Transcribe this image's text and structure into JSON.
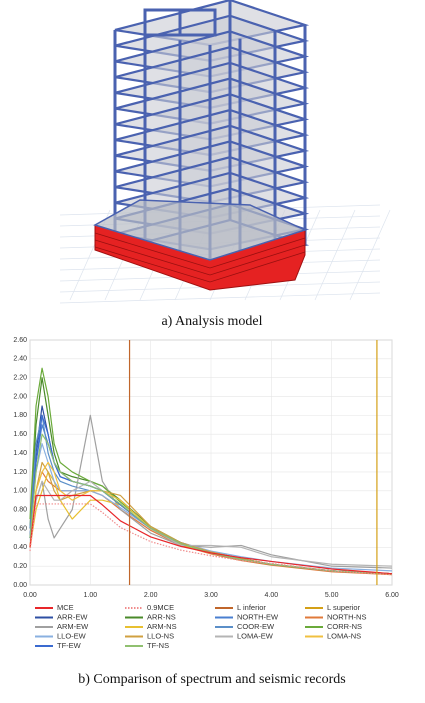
{
  "figure_a_caption": "a)   Analysis model",
  "chart_data": {
    "type": "line",
    "caption": "b) Comparison of spectrum and seismic records",
    "x": [
      0,
      0.1,
      0.2,
      0.3,
      0.4,
      0.5,
      0.7,
      1.0,
      1.2,
      1.5,
      2.0,
      2.5,
      3.0,
      3.5,
      4.0,
      5.0,
      6.0
    ],
    "xlim": [
      0,
      6
    ],
    "ylim": [
      0,
      2.6
    ],
    "grid": true,
    "xticks": [
      {
        "value": 0,
        "label": "0.00"
      },
      {
        "value": 1,
        "label": "1.00"
      },
      {
        "value": 2,
        "label": "2.00"
      },
      {
        "value": 3,
        "label": "3.00"
      },
      {
        "value": 4,
        "label": "4.00"
      },
      {
        "value": 5,
        "label": "5.00"
      },
      {
        "value": 6,
        "label": "6.00"
      }
    ],
    "yticks": [
      {
        "value": 0,
        "label": "0.00"
      },
      {
        "value": 0.2,
        "label": "0.20"
      },
      {
        "value": 0.4,
        "label": "0.40"
      },
      {
        "value": 0.6,
        "label": "0.60"
      },
      {
        "value": 0.8,
        "label": "0.80"
      },
      {
        "value": 1.0,
        "label": "1.00"
      },
      {
        "value": 1.2,
        "label": "1.20"
      },
      {
        "value": 1.4,
        "label": "1.40"
      },
      {
        "value": 1.6,
        "label": "1.60"
      },
      {
        "value": 1.8,
        "label": "1.80"
      },
      {
        "value": 2.0,
        "label": "2.00"
      },
      {
        "value": 2.2,
        "label": "2.20"
      },
      {
        "value": 2.4,
        "label": "2.40"
      },
      {
        "value": 2.6,
        "label": "2.60"
      }
    ],
    "series": [
      {
        "name": "MCE",
        "color": "#e8262a",
        "values": [
          0.4,
          0.95,
          0.95,
          0.95,
          0.95,
          0.95,
          0.95,
          0.95,
          0.85,
          0.68,
          0.51,
          0.41,
          0.34,
          0.29,
          0.25,
          0.17,
          0.12
        ]
      },
      {
        "name": "0.9MCE",
        "color": "#f08c8c",
        "dashed": true,
        "values": [
          0.36,
          0.86,
          0.86,
          0.86,
          0.86,
          0.86,
          0.86,
          0.86,
          0.77,
          0.61,
          0.46,
          0.37,
          0.31,
          0.26,
          0.23,
          0.15,
          0.11
        ]
      },
      {
        "name": "L inferior",
        "color": "#c0662b",
        "x": [
          1.65,
          1.65
        ],
        "values": [
          0,
          2.6
        ]
      },
      {
        "name": "L superior",
        "color": "#d4a017",
        "x": [
          5.75,
          5.75
        ],
        "values": [
          0,
          2.6
        ]
      },
      {
        "name": "ARR-EW",
        "color": "#2e4fa3",
        "values": [
          0.5,
          1.4,
          1.9,
          1.6,
          1.3,
          1.2,
          1.1,
          1.05,
          1.0,
          0.85,
          0.6,
          0.45,
          0.35,
          0.28,
          0.22,
          0.15,
          0.12
        ]
      },
      {
        "name": "ARR-NS",
        "color": "#4a8a2a",
        "values": [
          0.6,
          1.7,
          2.2,
          1.8,
          1.4,
          1.2,
          1.15,
          1.1,
          1.05,
          0.9,
          0.62,
          0.45,
          0.34,
          0.27,
          0.22,
          0.15,
          0.12
        ]
      },
      {
        "name": "NORTH-EW",
        "color": "#4a7fd0",
        "values": [
          0.5,
          1.3,
          1.7,
          1.5,
          1.3,
          1.15,
          1.1,
          1.05,
          1.0,
          0.85,
          0.6,
          0.44,
          0.34,
          0.27,
          0.22,
          0.15,
          0.12
        ]
      },
      {
        "name": "NORTH-NS",
        "color": "#e07a3a",
        "values": [
          0.4,
          1.0,
          1.2,
          1.1,
          1.05,
          1.0,
          1.0,
          1.0,
          0.95,
          0.8,
          0.58,
          0.42,
          0.33,
          0.26,
          0.21,
          0.14,
          0.11
        ]
      },
      {
        "name": "ARM-EW",
        "color": "#a0a0a0",
        "values": [
          0.5,
          0.9,
          1.1,
          0.7,
          0.5,
          0.6,
          0.8,
          1.8,
          1.1,
          0.8,
          0.55,
          0.42,
          0.4,
          0.42,
          0.32,
          0.2,
          0.18
        ]
      },
      {
        "name": "ARM-NS",
        "color": "#e8c030",
        "values": [
          0.4,
          0.8,
          1.0,
          1.2,
          1.1,
          0.9,
          0.7,
          0.9,
          0.9,
          0.85,
          0.6,
          0.43,
          0.34,
          0.27,
          0.22,
          0.15,
          0.12
        ]
      },
      {
        "name": "COOR-EW",
        "color": "#5b8fc8",
        "values": [
          0.6,
          1.5,
          1.8,
          1.4,
          1.2,
          1.1,
          1.05,
          1.0,
          1.0,
          0.85,
          0.6,
          0.45,
          0.35,
          0.28,
          0.22,
          0.15,
          0.12
        ]
      },
      {
        "name": "CORR-NS",
        "color": "#6aaa3a",
        "values": [
          0.7,
          1.9,
          2.3,
          2.0,
          1.5,
          1.3,
          1.2,
          1.1,
          1.05,
          0.88,
          0.62,
          0.45,
          0.35,
          0.28,
          0.22,
          0.15,
          0.12
        ]
      },
      {
        "name": "LLO-EW",
        "color": "#8ab0e0",
        "values": [
          0.5,
          1.2,
          1.5,
          1.3,
          1.1,
          1.0,
          1.0,
          1.0,
          0.95,
          0.82,
          0.6,
          0.45,
          0.36,
          0.3,
          0.25,
          0.18,
          0.15
        ]
      },
      {
        "name": "LLO-NS",
        "color": "#d0a040",
        "values": [
          0.4,
          1.0,
          1.3,
          1.2,
          1.0,
          0.9,
          0.95,
          1.0,
          1.0,
          0.95,
          0.62,
          0.45,
          0.35,
          0.28,
          0.22,
          0.15,
          0.12
        ]
      },
      {
        "name": "LOMA-EW",
        "color": "#b4b4b4",
        "values": [
          0.5,
          0.9,
          1.1,
          1.0,
          0.9,
          0.9,
          1.0,
          1.1,
          1.0,
          0.85,
          0.6,
          0.42,
          0.42,
          0.4,
          0.3,
          0.22,
          0.2
        ]
      },
      {
        "name": "LOMA-NS",
        "color": "#f0c040",
        "values": [
          0.4,
          1.0,
          1.2,
          1.3,
          1.2,
          1.0,
          0.9,
          1.0,
          1.0,
          0.9,
          0.6,
          0.44,
          0.34,
          0.27,
          0.22,
          0.15,
          0.12
        ]
      },
      {
        "name": "TF-EW",
        "color": "#3a6ad0",
        "values": [
          0.5,
          1.3,
          1.8,
          1.6,
          1.3,
          1.15,
          1.1,
          1.05,
          1.0,
          0.85,
          0.6,
          0.44,
          0.34,
          0.27,
          0.22,
          0.15,
          0.12
        ]
      },
      {
        "name": "TF-NS",
        "color": "#90c070",
        "values": [
          0.5,
          1.2,
          1.6,
          1.5,
          1.3,
          1.2,
          1.1,
          1.05,
          1.0,
          0.86,
          0.6,
          0.44,
          0.34,
          0.27,
          0.22,
          0.15,
          0.12
        ]
      }
    ]
  }
}
